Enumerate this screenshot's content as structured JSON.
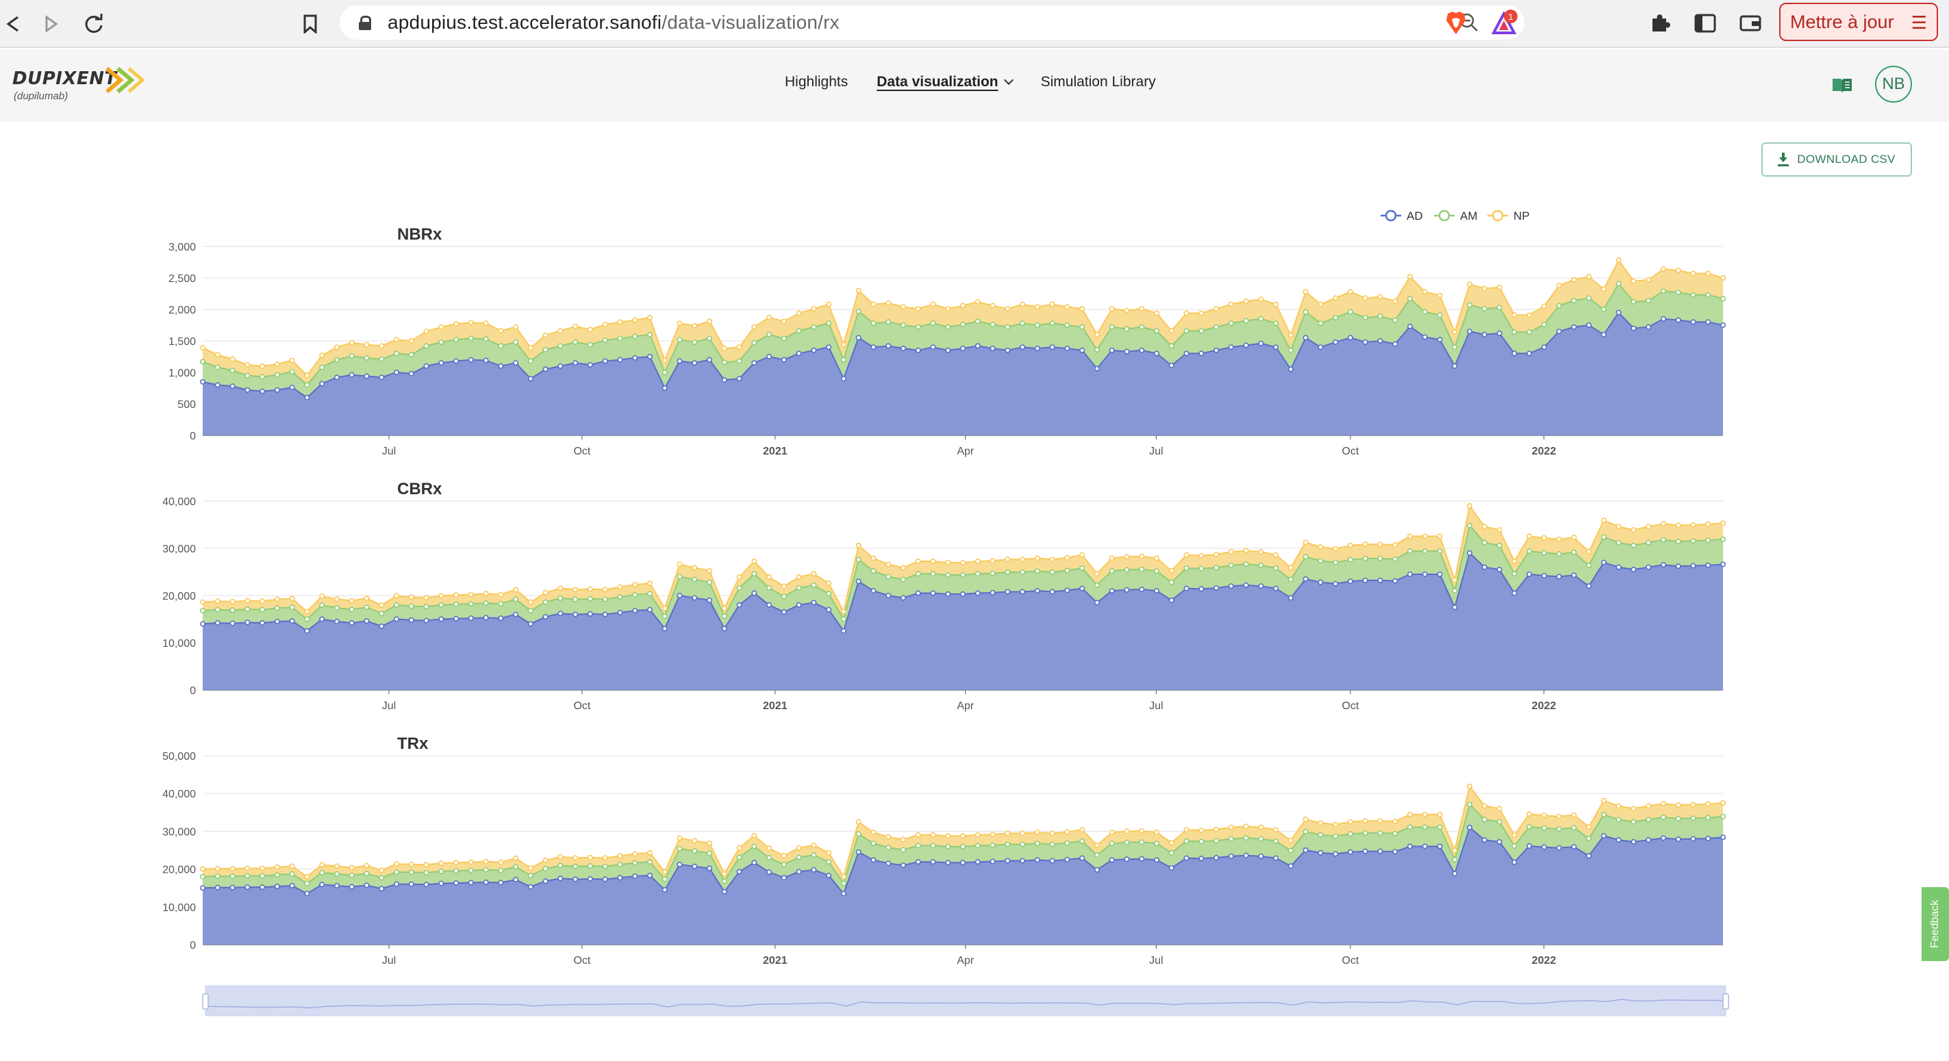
{
  "browser": {
    "url_host": "apdupius.test.accelerator.sanofi",
    "url_path": "/data-visualization/rx",
    "update_button": "Mettre à jour",
    "extension_badge": "1",
    "icons": [
      "back-icon",
      "forward-icon",
      "reload-icon",
      "bookmark-icon",
      "lock-icon",
      "zoom-icon",
      "brave-shield-icon",
      "rewards-triangle-icon",
      "puzzle-icon",
      "sidebar-icon",
      "wallet-icon",
      "hamburger-icon"
    ]
  },
  "app": {
    "brand": "DUPIXENT",
    "brand_sub": "(dupilumab)",
    "nav": [
      {
        "label": "Highlights"
      },
      {
        "label": "Data visualization",
        "active": true
      },
      {
        "label": "Simulation Library"
      }
    ],
    "avatar": "NB"
  },
  "download_label": "DOWNLOAD CSV",
  "feedback_label": "Feedback",
  "colors": {
    "AD": "#5470c6",
    "AM": "#91cc75",
    "NP": "#fac858",
    "accent": "#2f7a55"
  },
  "chart_data": [
    {
      "type": "area",
      "stacked": true,
      "title": "NBRx",
      "legend": [
        "AD",
        "AM",
        "NP"
      ],
      "legend_position": "top-right",
      "x_ticks": [
        "Jul",
        "Oct",
        "2021",
        "Apr",
        "Jul",
        "Oct",
        "2022"
      ],
      "y_ticks": [
        "0",
        "500",
        "1,000",
        "1,500",
        "2,000",
        "2,500",
        "3,000"
      ],
      "ylim": [
        0,
        3000
      ],
      "series": [
        {
          "name": "AD",
          "values": [
            850,
            800,
            780,
            720,
            700,
            720,
            760,
            600,
            820,
            920,
            960,
            940,
            920,
            1000,
            980,
            1100,
            1150,
            1180,
            1200,
            1190,
            1100,
            1150,
            900,
            1050,
            1100,
            1150,
            1120,
            1180,
            1200,
            1230,
            1250,
            750,
            1180,
            1150,
            1200,
            880,
            900,
            1150,
            1250,
            1200,
            1300,
            1350,
            1400,
            900,
            1550,
            1400,
            1420,
            1380,
            1350,
            1400,
            1350,
            1380,
            1420,
            1380,
            1350,
            1400,
            1380,
            1400,
            1380,
            1350,
            1060,
            1350,
            1330,
            1350,
            1300,
            1110,
            1300,
            1300,
            1350,
            1400,
            1430,
            1460,
            1400,
            1050,
            1550,
            1400,
            1480,
            1550,
            1480,
            1500,
            1450,
            1730,
            1560,
            1520,
            1100,
            1650,
            1600,
            1620,
            1300,
            1300,
            1400,
            1650,
            1720,
            1750,
            1600,
            1950,
            1700,
            1720,
            1850,
            1830,
            1800,
            1800,
            1750
          ]
        },
        {
          "name": "AM",
          "values": [
            320,
            280,
            250,
            230,
            230,
            240,
            250,
            200,
            260,
            280,
            300,
            290,
            290,
            300,
            300,
            320,
            330,
            340,
            340,
            340,
            320,
            330,
            280,
            310,
            320,
            330,
            320,
            330,
            340,
            340,
            350,
            250,
            340,
            330,
            340,
            280,
            280,
            320,
            350,
            340,
            360,
            370,
            380,
            300,
            420,
            380,
            380,
            370,
            370,
            380,
            370,
            380,
            390,
            380,
            370,
            380,
            370,
            380,
            370,
            370,
            300,
            370,
            360,
            370,
            360,
            310,
            360,
            360,
            370,
            380,
            390,
            390,
            380,
            300,
            410,
            380,
            390,
            410,
            390,
            390,
            380,
            440,
            400,
            390,
            300,
            420,
            410,
            410,
            340,
            340,
            360,
            410,
            420,
            430,
            400,
            460,
            420,
            420,
            440,
            440,
            430,
            430,
            420
          ]
        },
        {
          "name": "NP",
          "values": [
            220,
            200,
            180,
            170,
            170,
            170,
            180,
            150,
            190,
            200,
            210,
            210,
            210,
            220,
            220,
            230,
            240,
            250,
            250,
            250,
            240,
            240,
            210,
            230,
            240,
            250,
            240,
            250,
            260,
            260,
            270,
            190,
            260,
            260,
            270,
            220,
            220,
            250,
            270,
            270,
            280,
            290,
            300,
            240,
            330,
            300,
            300,
            290,
            290,
            300,
            290,
            300,
            310,
            300,
            290,
            300,
            290,
            300,
            290,
            290,
            240,
            290,
            290,
            290,
            280,
            240,
            280,
            280,
            290,
            300,
            310,
            310,
            300,
            240,
            320,
            300,
            310,
            320,
            310,
            310,
            300,
            350,
            320,
            310,
            240,
            330,
            320,
            320,
            270,
            270,
            290,
            320,
            330,
            340,
            320,
            370,
            330,
            330,
            350,
            350,
            340,
            340,
            330
          ]
        }
      ]
    },
    {
      "type": "area",
      "stacked": true,
      "title": "CBRx",
      "legend": [
        "AD",
        "AM",
        "NP"
      ],
      "x_ticks": [
        "Jul",
        "Oct",
        "2021",
        "Apr",
        "Jul",
        "Oct",
        "2022"
      ],
      "y_ticks": [
        "0",
        "10,000",
        "20,000",
        "30,000",
        "40,000"
      ],
      "ylim": [
        0,
        40000
      ],
      "series": [
        {
          "name": "AD",
          "values": [
            14000,
            14200,
            14100,
            14300,
            14200,
            14500,
            14600,
            12500,
            15000,
            14500,
            14200,
            14600,
            13500,
            15000,
            14800,
            14700,
            15000,
            15100,
            15200,
            15300,
            15200,
            16000,
            14000,
            15500,
            16200,
            16000,
            16100,
            16000,
            16400,
            16800,
            17000,
            13000,
            20000,
            19500,
            19000,
            13000,
            18000,
            20500,
            18000,
            16500,
            18000,
            18500,
            17000,
            12500,
            23000,
            21000,
            20000,
            19500,
            20500,
            20500,
            20300,
            20300,
            20500,
            20600,
            20800,
            20800,
            21000,
            20800,
            21100,
            21500,
            18500,
            21000,
            21200,
            21300,
            21000,
            19000,
            21500,
            21400,
            21600,
            22000,
            22200,
            22000,
            21500,
            19500,
            23500,
            22800,
            22500,
            23000,
            23200,
            23200,
            23100,
            24500,
            24500,
            24500,
            17500,
            29000,
            26000,
            25500,
            20500,
            24500,
            24200,
            24000,
            24300,
            22000,
            27000,
            26000,
            25500,
            26000,
            26500,
            26200,
            26300,
            26400,
            26600
          ]
        },
        {
          "name": "AM",
          "values": [
            2800,
            2800,
            2800,
            2800,
            2800,
            2850,
            2900,
            2500,
            2950,
            2900,
            2850,
            2900,
            2700,
            3000,
            2950,
            2950,
            3000,
            3050,
            3050,
            3100,
            3050,
            3200,
            2800,
            3100,
            3250,
            3200,
            3200,
            3200,
            3300,
            3350,
            3400,
            2600,
            4000,
            3900,
            3800,
            2600,
            3600,
            4100,
            3600,
            3300,
            3600,
            3700,
            3400,
            2500,
            4600,
            4200,
            4000,
            3900,
            4100,
            4100,
            4050,
            4050,
            4100,
            4100,
            4150,
            4150,
            4200,
            4150,
            4200,
            4300,
            3700,
            4200,
            4250,
            4250,
            4200,
            3800,
            4300,
            4300,
            4300,
            4400,
            4450,
            4400,
            4300,
            3900,
            4700,
            4550,
            4500,
            4600,
            4650,
            4650,
            4600,
            4900,
            4900,
            4900,
            3500,
            5800,
            5200,
            5100,
            4100,
            4900,
            4850,
            4800,
            4850,
            4400,
            5400,
            5200,
            5100,
            5200,
            5300,
            5250,
            5250,
            5300,
            5300
          ]
        },
        {
          "name": "NP",
          "values": [
            1800,
            1800,
            1800,
            1800,
            1800,
            1850,
            1850,
            1600,
            1900,
            1850,
            1850,
            1900,
            1750,
            1950,
            1900,
            1900,
            1950,
            1950,
            1950,
            2000,
            1950,
            2050,
            1800,
            2000,
            2100,
            2050,
            2050,
            2050,
            2100,
            2150,
            2200,
            1700,
            2600,
            2500,
            2450,
            1700,
            2300,
            2650,
            2300,
            2150,
            2300,
            2400,
            2200,
            1600,
            3000,
            2700,
            2600,
            2500,
            2650,
            2650,
            2600,
            2600,
            2650,
            2650,
            2700,
            2700,
            2700,
            2700,
            2700,
            2800,
            2400,
            2700,
            2750,
            2750,
            2700,
            2450,
            2800,
            2750,
            2800,
            2850,
            2850,
            2850,
            2800,
            2500,
            3050,
            2950,
            2900,
            3000,
            3000,
            3000,
            3000,
            3150,
            3150,
            3150,
            2250,
            4200,
            3400,
            3300,
            2650,
            3150,
            3150,
            3100,
            3150,
            2850,
            3500,
            3400,
            3300,
            3400,
            3400,
            3400,
            3400,
            3400,
            3400
          ]
        }
      ]
    },
    {
      "type": "area",
      "stacked": true,
      "title": "TRx",
      "legend": [
        "AD",
        "AM",
        "NP"
      ],
      "x_ticks": [
        "Jul",
        "Oct",
        "2021",
        "Apr",
        "Jul",
        "Oct",
        "2022"
      ],
      "y_ticks": [
        "0",
        "10,000",
        "20,000",
        "30,000",
        "40,000",
        "50,000"
      ],
      "ylim": [
        0,
        50000
      ],
      "series": [
        {
          "name": "AD",
          "values": [
            15000,
            15100,
            15100,
            15200,
            15200,
            15400,
            15600,
            13500,
            15900,
            15600,
            15300,
            15700,
            14800,
            16000,
            16000,
            15900,
            16200,
            16300,
            16400,
            16500,
            16400,
            17200,
            15300,
            16800,
            17500,
            17300,
            17400,
            17300,
            17700,
            18100,
            18300,
            14500,
            21200,
            20700,
            20200,
            14000,
            19300,
            21700,
            19200,
            17700,
            19300,
            19800,
            18300,
            13500,
            24500,
            22400,
            21500,
            21000,
            21900,
            21900,
            21700,
            21700,
            21900,
            22000,
            22200,
            22200,
            22400,
            22200,
            22500,
            22900,
            19800,
            22400,
            22600,
            22700,
            22400,
            20300,
            22900,
            22800,
            23000,
            23400,
            23600,
            23400,
            22900,
            20800,
            25000,
            24300,
            24000,
            24500,
            24700,
            24700,
            24600,
            26000,
            26000,
            26000,
            18800,
            31000,
            27700,
            27200,
            21800,
            26100,
            25800,
            25600,
            25900,
            23500,
            28800,
            27700,
            27200,
            27700,
            28200,
            27900,
            28000,
            28100,
            28400
          ]
        },
        {
          "name": "AM",
          "values": [
            3000,
            3000,
            3000,
            3000,
            3000,
            3050,
            3100,
            2700,
            3150,
            3100,
            3050,
            3100,
            2900,
            3200,
            3150,
            3150,
            3200,
            3250,
            3250,
            3300,
            3250,
            3400,
            3000,
            3300,
            3450,
            3400,
            3400,
            3400,
            3500,
            3550,
            3600,
            2800,
            4200,
            4100,
            4000,
            2800,
            3800,
            4300,
            3800,
            3500,
            3800,
            3900,
            3600,
            2700,
            4800,
            4400,
            4200,
            4100,
            4300,
            4300,
            4250,
            4250,
            4300,
            4300,
            4350,
            4350,
            4400,
            4350,
            4400,
            4500,
            3900,
            4400,
            4450,
            4450,
            4400,
            4000,
            4500,
            4500,
            4500,
            4600,
            4650,
            4600,
            4500,
            4100,
            4900,
            4750,
            4700,
            4800,
            4850,
            4850,
            4800,
            5100,
            5100,
            5100,
            3700,
            6100,
            5400,
            5300,
            4300,
            5100,
            5050,
            5000,
            5050,
            4600,
            5600,
            5400,
            5300,
            5400,
            5500,
            5450,
            5450,
            5500,
            5500
          ]
        },
        {
          "name": "NP",
          "values": [
            2000,
            2000,
            2000,
            2000,
            2000,
            2050,
            2050,
            1800,
            2100,
            2050,
            2050,
            2100,
            1950,
            2150,
            2100,
            2100,
            2150,
            2150,
            2150,
            2200,
            2150,
            2250,
            2000,
            2200,
            2300,
            2250,
            2250,
            2250,
            2300,
            2350,
            2400,
            1900,
            2800,
            2700,
            2650,
            1900,
            2500,
            2850,
            2500,
            2350,
            2500,
            2600,
            2400,
            1800,
            3200,
            2900,
            2800,
            2700,
            2850,
            2850,
            2800,
            2800,
            2850,
            2850,
            2900,
            2900,
            2900,
            2900,
            2900,
            3000,
            2600,
            2900,
            2950,
            2950,
            2900,
            2650,
            3000,
            2950,
            3000,
            3050,
            3050,
            3050,
            3000,
            2700,
            3250,
            3150,
            3100,
            3200,
            3200,
            3200,
            3200,
            3350,
            3350,
            3350,
            2450,
            4800,
            3600,
            3500,
            2850,
            3350,
            3350,
            3300,
            3350,
            3050,
            3700,
            3600,
            3500,
            3600,
            3600,
            3600,
            3600,
            3600,
            3600
          ]
        }
      ]
    }
  ]
}
